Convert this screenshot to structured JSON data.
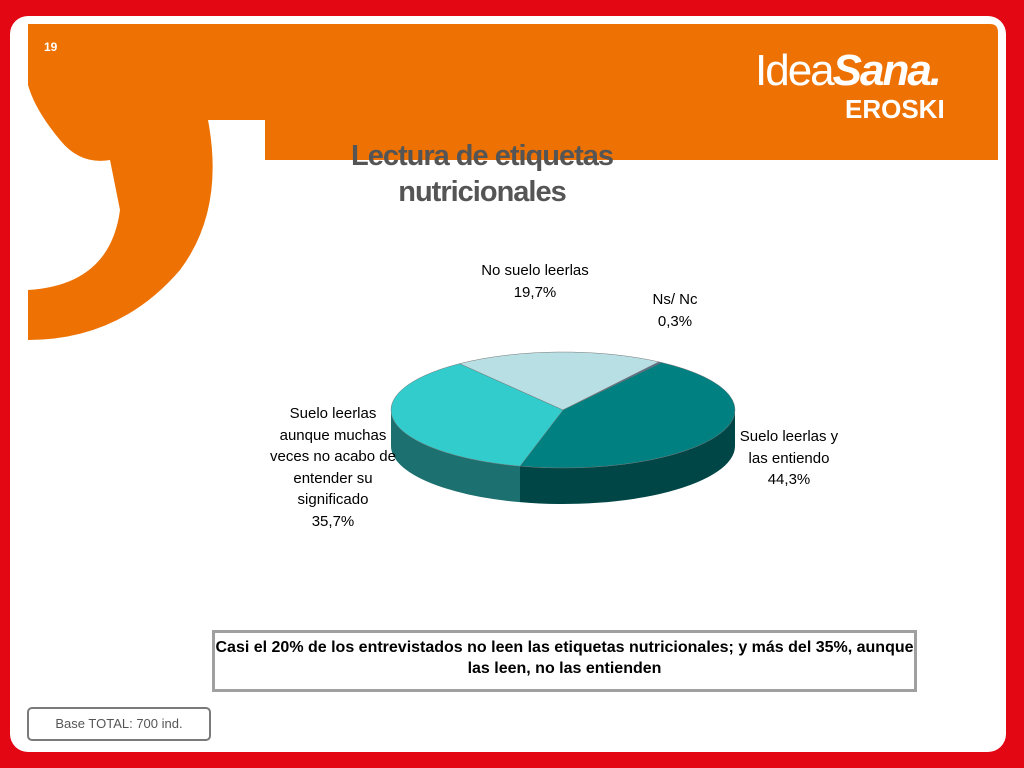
{
  "page_number": "19",
  "logo": {
    "idea": "Idea",
    "sana": "Sana.",
    "company": "EROSKI"
  },
  "chart_data": {
    "type": "pie",
    "title": "Lectura de etiquetas nutricionales",
    "categories": [
      "No suelo leerlas",
      "Ns/ Nc",
      "Suelo leerlas y las entiendo",
      "Suelo leerlas aunque muchas veces no acabo de entender su significado"
    ],
    "values": [
      19.7,
      0.3,
      44.3,
      35.7
    ],
    "value_labels": [
      "19,7%",
      "0,3%",
      "44,3%",
      "35,7%"
    ],
    "colors": [
      "#b8dfe3",
      "#5a6a8a",
      "#008080",
      "#33cccc"
    ]
  },
  "callout": "Casi el 20% de los entrevistados no leen las etiquetas nutricionales; y más del 35%, aunque las leen, no las entienden",
  "footnote": "Base TOTAL: 700 ind."
}
